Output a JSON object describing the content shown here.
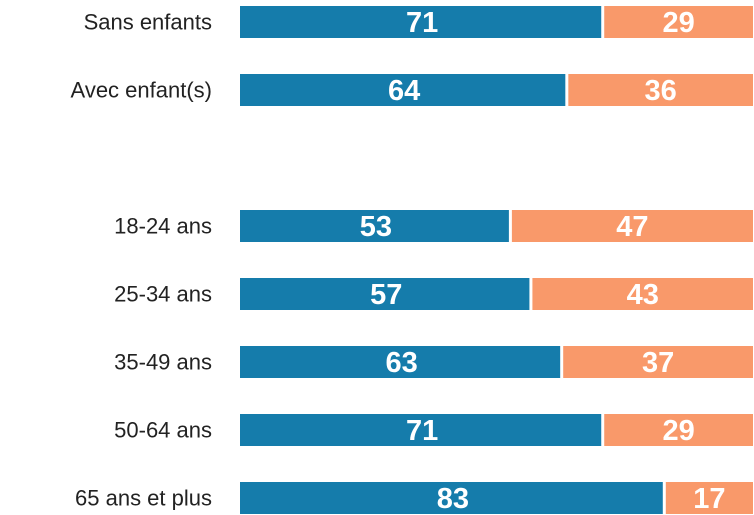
{
  "chart_data": {
    "type": "stacked-bar-horizontal",
    "categories": [
      "Sans enfants",
      "Avec enfant(s)",
      null,
      "18-24 ans",
      "25-34 ans",
      "35-49 ans",
      "50-64 ans",
      "65 ans et plus"
    ],
    "series": [
      {
        "color": "#157cab",
        "values": [
          71,
          64,
          null,
          53,
          57,
          63,
          71,
          83
        ]
      },
      {
        "color": "#f9996a",
        "values": [
          29,
          36,
          null,
          47,
          43,
          37,
          29,
          17
        ]
      }
    ],
    "xlim": [
      0,
      100
    ]
  }
}
